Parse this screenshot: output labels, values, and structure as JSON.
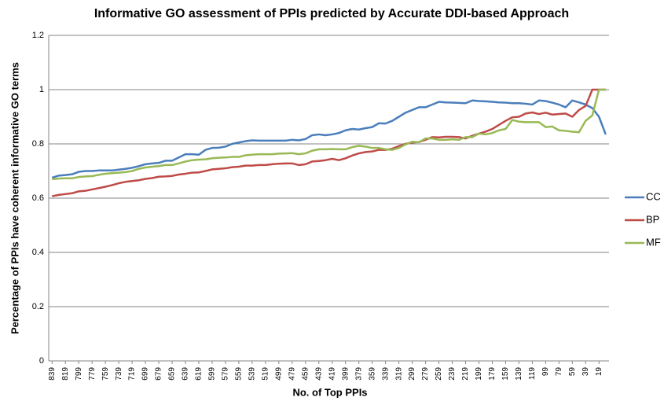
{
  "chart_data": {
    "type": "line",
    "title": "Informative GO assessment of PPIs predicted by Accurate DDI-based Approach",
    "x_label": "No. of Top PPIs",
    "y_label": "Percentage of PPIs have coherent informative GO terms",
    "categories": [
      "839",
      null,
      "819",
      null,
      "799",
      null,
      "779",
      null,
      "759",
      null,
      "739",
      null,
      "719",
      null,
      "699",
      null,
      "679",
      null,
      "659",
      null,
      "639",
      null,
      "619",
      null,
      "599",
      null,
      "579",
      null,
      "559",
      null,
      "539",
      null,
      "519",
      null,
      "499",
      null,
      "479",
      null,
      "459",
      null,
      "439",
      null,
      "419",
      null,
      "399",
      null,
      "379",
      null,
      "359",
      null,
      "339",
      null,
      "319",
      null,
      "299",
      null,
      "279",
      null,
      "259",
      null,
      "239",
      null,
      "219",
      null,
      "199",
      null,
      "179",
      null,
      "159",
      null,
      "139",
      null,
      "119",
      null,
      "99",
      null,
      "79",
      null,
      "59",
      null,
      "39",
      null,
      "19",
      null
    ],
    "series": [
      {
        "name": "CC",
        "color": "#4a7ebb",
        "values": [
          0.675,
          0.683,
          0.685,
          0.688,
          0.697,
          0.7,
          0.7,
          0.702,
          0.702,
          0.702,
          0.705,
          0.708,
          0.712,
          0.718,
          0.725,
          0.728,
          0.73,
          0.738,
          0.738,
          0.75,
          0.762,
          0.762,
          0.76,
          0.778,
          0.785,
          0.786,
          0.79,
          0.8,
          0.805,
          0.81,
          0.813,
          0.812,
          0.812,
          0.812,
          0.812,
          0.812,
          0.815,
          0.813,
          0.818,
          0.832,
          0.835,
          0.832,
          0.835,
          0.84,
          0.85,
          0.855,
          0.853,
          0.858,
          0.862,
          0.876,
          0.875,
          0.885,
          0.9,
          0.915,
          0.925,
          0.935,
          0.935,
          0.945,
          0.955,
          0.953,
          0.952,
          0.951,
          0.95,
          0.96,
          0.958,
          0.957,
          0.955,
          0.953,
          0.952,
          0.95,
          0.95,
          0.948,
          0.945,
          0.96,
          0.958,
          0.952,
          0.945,
          0.935,
          0.96,
          0.953,
          0.945,
          0.932,
          0.9,
          0.835
        ]
      },
      {
        "name": "BP",
        "color": "#be4b48",
        "values": [
          0.607,
          0.612,
          0.615,
          0.618,
          0.625,
          0.627,
          0.632,
          0.637,
          0.642,
          0.648,
          0.655,
          0.66,
          0.663,
          0.666,
          0.671,
          0.674,
          0.679,
          0.68,
          0.682,
          0.687,
          0.69,
          0.694,
          0.695,
          0.7,
          0.706,
          0.708,
          0.71,
          0.714,
          0.716,
          0.72,
          0.72,
          0.722,
          0.722,
          0.725,
          0.727,
          0.728,
          0.728,
          0.722,
          0.725,
          0.735,
          0.737,
          0.74,
          0.745,
          0.74,
          0.747,
          0.757,
          0.765,
          0.77,
          0.772,
          0.778,
          0.778,
          0.782,
          0.792,
          0.8,
          0.805,
          0.807,
          0.815,
          0.825,
          0.824,
          0.826,
          0.826,
          0.825,
          0.82,
          0.83,
          0.838,
          0.845,
          0.855,
          0.87,
          0.885,
          0.898,
          0.9,
          0.912,
          0.916,
          0.91,
          0.915,
          0.908,
          0.91,
          0.912,
          0.9,
          0.925,
          0.94,
          1.0,
          1.0,
          1.0
        ]
      },
      {
        "name": "MF",
        "color": "#98b954",
        "values": [
          0.67,
          0.672,
          0.673,
          0.673,
          0.678,
          0.68,
          0.681,
          0.686,
          0.69,
          0.692,
          0.694,
          0.696,
          0.7,
          0.708,
          0.713,
          0.716,
          0.718,
          0.722,
          0.722,
          0.728,
          0.735,
          0.74,
          0.742,
          0.743,
          0.747,
          0.749,
          0.75,
          0.752,
          0.752,
          0.758,
          0.76,
          0.762,
          0.762,
          0.762,
          0.764,
          0.765,
          0.766,
          0.762,
          0.765,
          0.775,
          0.78,
          0.78,
          0.781,
          0.78,
          0.78,
          0.788,
          0.793,
          0.79,
          0.785,
          0.785,
          0.78,
          0.778,
          0.785,
          0.798,
          0.808,
          0.806,
          0.82,
          0.82,
          0.815,
          0.815,
          0.817,
          0.815,
          0.825,
          0.825,
          0.838,
          0.835,
          0.84,
          0.85,
          0.855,
          0.888,
          0.882,
          0.88,
          0.88,
          0.88,
          0.862,
          0.864,
          0.85,
          0.848,
          0.845,
          0.843,
          0.885,
          0.905,
          1.0,
          1.0
        ]
      }
    ],
    "ylim": [
      0,
      1.2
    ],
    "yticks": [
      0,
      0.2,
      0.4,
      0.6,
      0.8,
      1,
      1.2
    ],
    "grid": true,
    "legend": "right"
  }
}
